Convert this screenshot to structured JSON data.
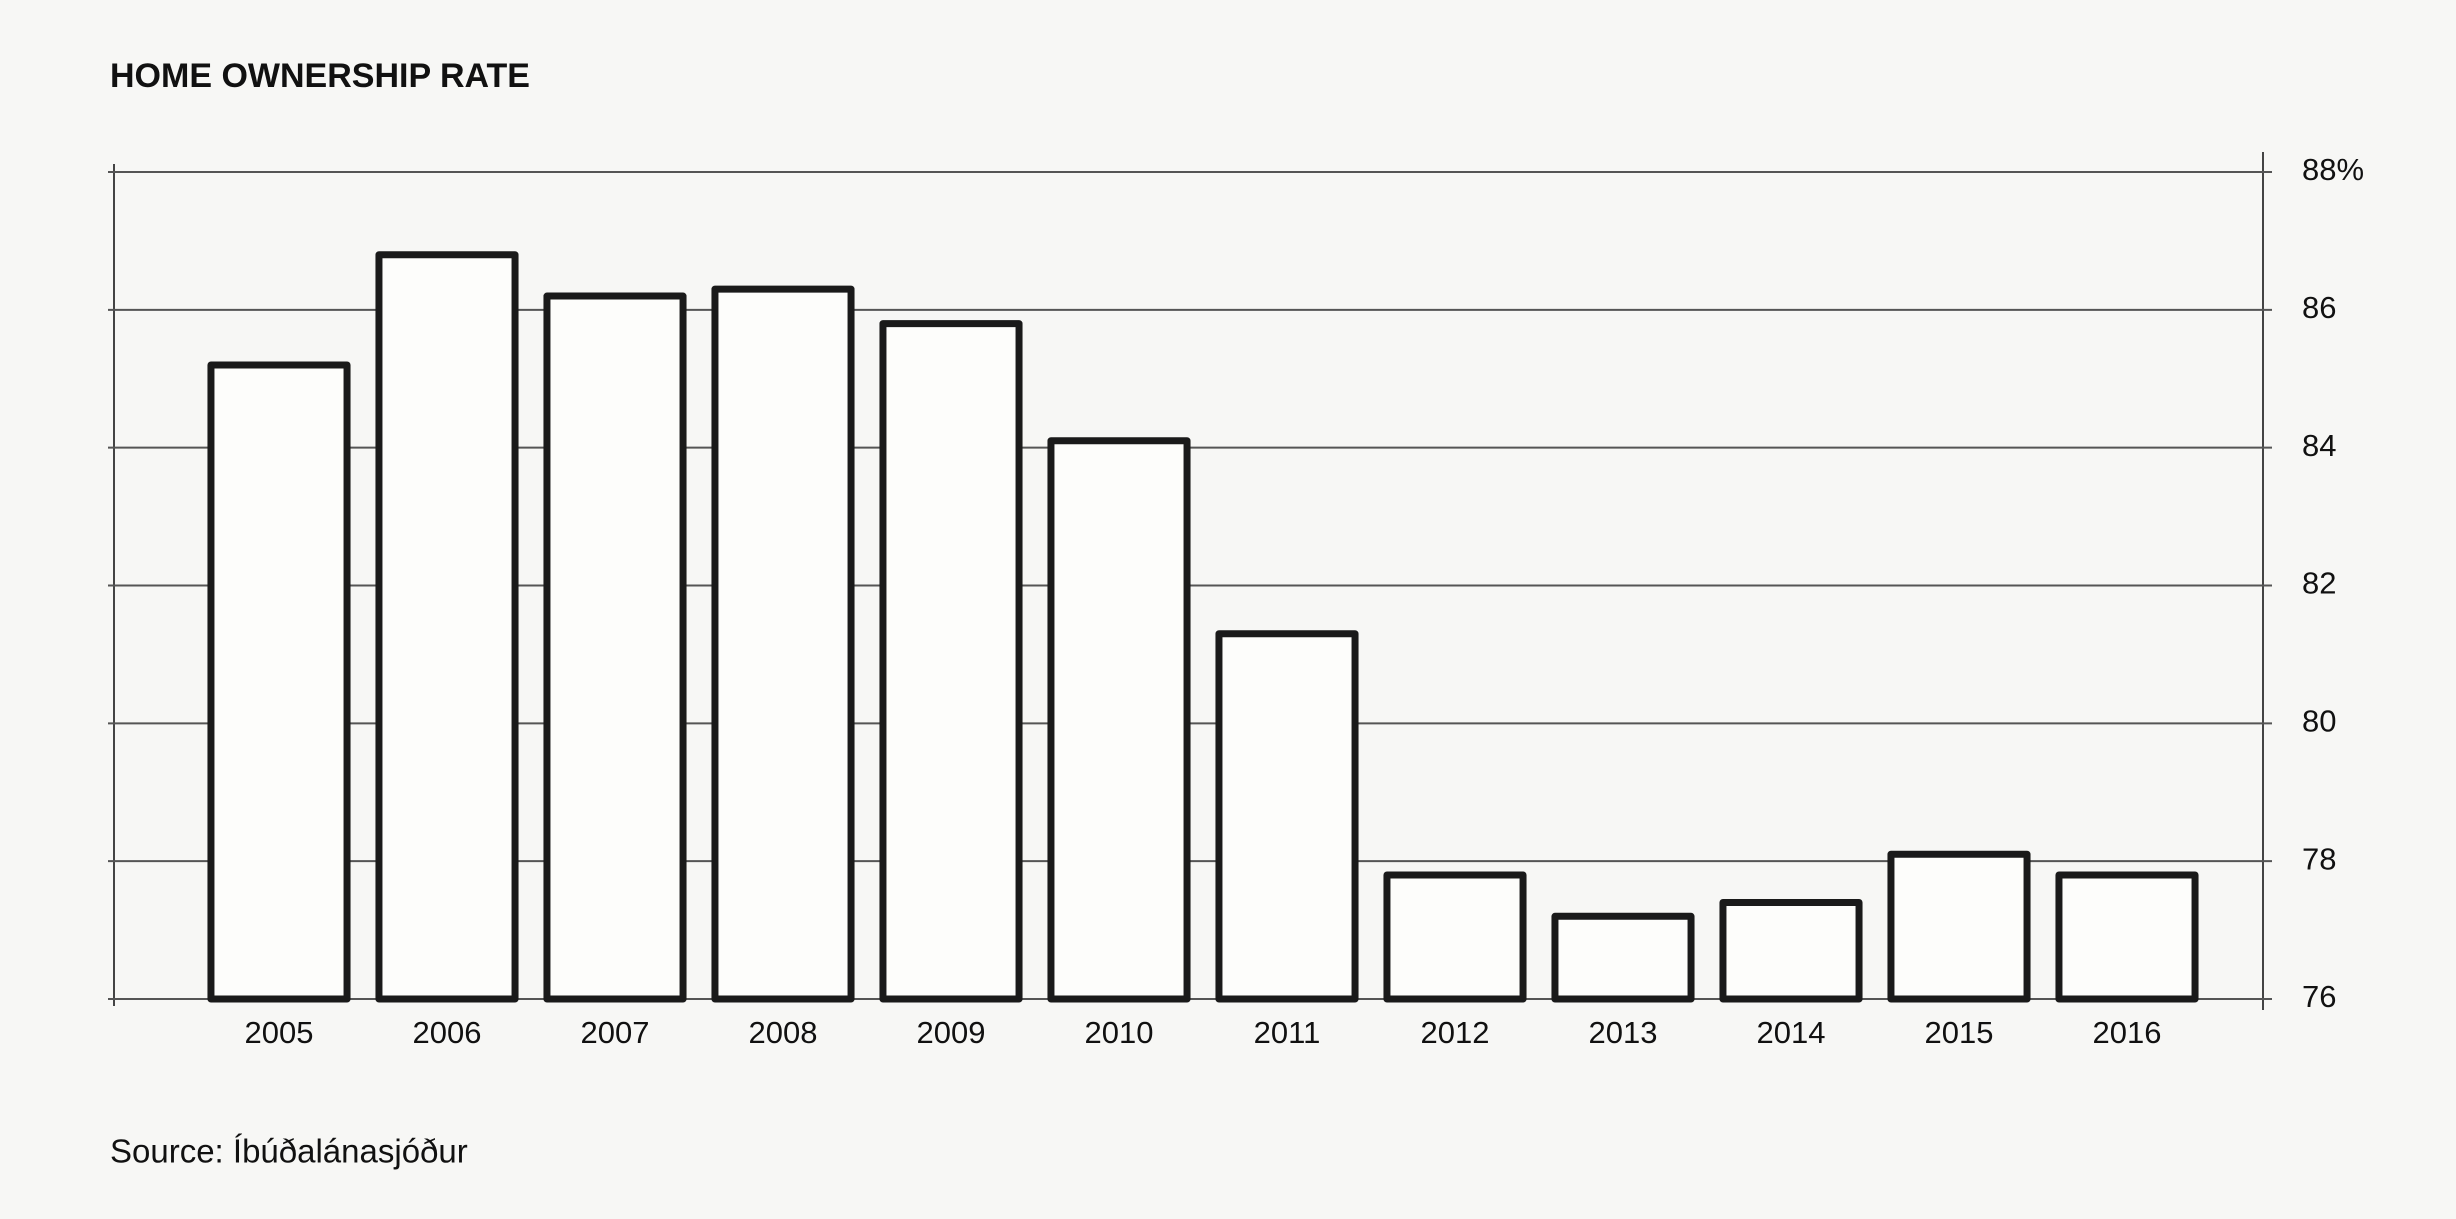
{
  "chart_data": {
    "type": "bar",
    "title": "HOME OWNERSHIP RATE",
    "source": "Source: Íbúðalánasjóður",
    "categories": [
      "2005",
      "2006",
      "2007",
      "2008",
      "2009",
      "2010",
      "2011",
      "2012",
      "2013",
      "2014",
      "2015",
      "2016"
    ],
    "values": [
      85.2,
      86.8,
      86.2,
      86.3,
      85.8,
      84.1,
      81.3,
      77.8,
      77.2,
      77.4,
      78.1,
      77.8
    ],
    "color": "#fdfdfb",
    "edge_color": "#1a1a1a",
    "ylim": [
      76,
      88
    ],
    "yticks": [
      76,
      78,
      80,
      82,
      84,
      86,
      {
        "value": 88,
        "label": "88%"
      }
    ],
    "grid": true
  }
}
